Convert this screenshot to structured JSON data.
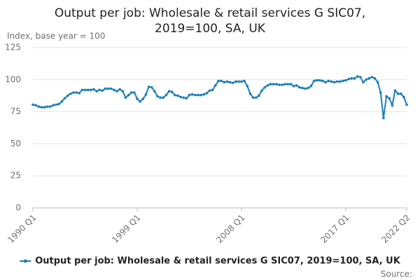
{
  "chart_data": {
    "type": "line",
    "title": [
      "Output per job: Wholesale & retail services G SIC07,",
      "2019=100, SA, UK"
    ],
    "y_label": "Index, base year = 100",
    "source": "Source:",
    "categories": [
      "1990 Q1",
      null,
      null,
      null,
      null,
      null,
      null,
      null,
      null,
      null,
      null,
      null,
      null,
      null,
      null,
      null,
      null,
      null,
      null,
      null,
      null,
      null,
      null,
      null,
      null,
      null,
      null,
      null,
      null,
      null,
      null,
      null,
      null,
      null,
      null,
      null,
      "1999 Q1",
      null,
      null,
      null,
      null,
      null,
      null,
      null,
      null,
      null,
      null,
      null,
      null,
      null,
      null,
      null,
      null,
      null,
      null,
      null,
      null,
      null,
      null,
      null,
      null,
      null,
      null,
      null,
      null,
      null,
      null,
      null,
      null,
      null,
      null,
      null,
      "2008 Q1",
      null,
      null,
      null,
      null,
      null,
      null,
      null,
      null,
      null,
      null,
      null,
      null,
      null,
      null,
      null,
      null,
      null,
      null,
      null,
      null,
      null,
      null,
      null,
      null,
      null,
      null,
      null,
      null,
      null,
      null,
      null,
      null,
      null,
      null,
      null,
      "2017 Q1",
      null,
      null,
      null,
      null,
      null,
      null,
      null,
      null,
      null,
      null,
      null,
      null,
      null,
      null,
      null,
      null,
      null,
      null,
      null,
      null,
      "2022 Q2"
    ],
    "series": [
      {
        "name": "Output per job: Wholesale & retail services G SIC07, 2019=100, SA, UK",
        "color": "#1b7fb8",
        "values": [
          80.5,
          80,
          79,
          78.5,
          78.5,
          79,
          79,
          80,
          80.5,
          81,
          83,
          85.5,
          87.5,
          89,
          90,
          90,
          89.5,
          92,
          92,
          92,
          92,
          92.5,
          91,
          92,
          91.5,
          93,
          93,
          93,
          92,
          91,
          92.5,
          91,
          86,
          88,
          90,
          90,
          85,
          83,
          85,
          88.5,
          94.5,
          94,
          91,
          87,
          86,
          86,
          88,
          91,
          90.5,
          88,
          87.5,
          86.5,
          86,
          85.5,
          88,
          88.5,
          88,
          88,
          88,
          88.5,
          89.5,
          91.5,
          92,
          95.5,
          99,
          99,
          98,
          98.5,
          98,
          97.5,
          98.5,
          98.5,
          98.5,
          99,
          95,
          89,
          86,
          86,
          87.5,
          91.5,
          94,
          95.5,
          96.5,
          96.5,
          96.5,
          96,
          96,
          96.5,
          96.5,
          96.5,
          95,
          95.5,
          94,
          93.5,
          93,
          93.5,
          95,
          99,
          99.5,
          99.5,
          99,
          98,
          99,
          98.5,
          98,
          98.5,
          98.5,
          99,
          99.5,
          100.5,
          101,
          101,
          102.5,
          102,
          98,
          100,
          101,
          102,
          101,
          98,
          90,
          70,
          87,
          85.5,
          80,
          91.5,
          89,
          89,
          86.5,
          80.5
        ]
      }
    ],
    "ylim": [
      0,
      125
    ],
    "yticks": [
      0,
      25,
      50,
      75,
      100,
      125
    ],
    "grid": true,
    "legend": "bottom"
  }
}
